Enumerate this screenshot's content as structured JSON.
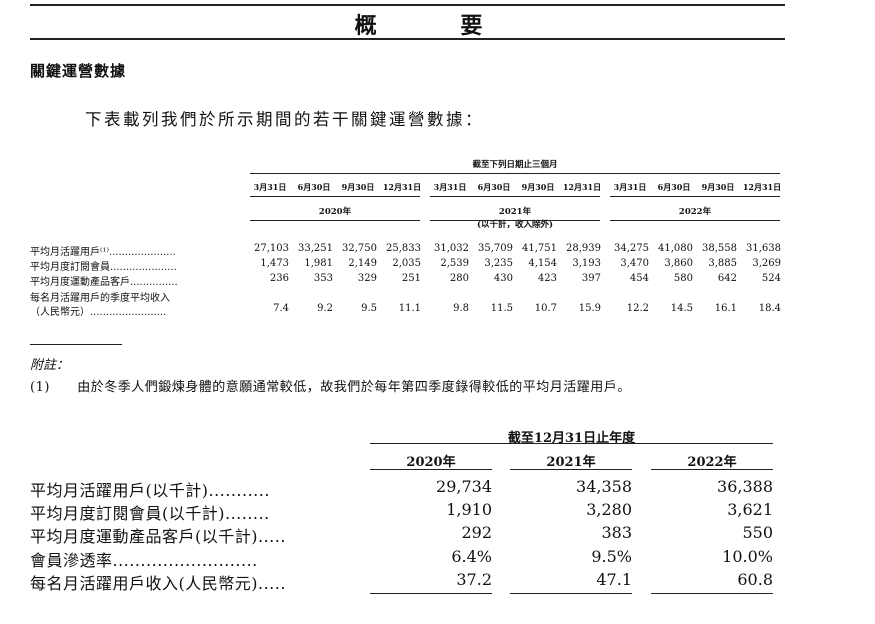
{
  "title": "概 要",
  "section_title": "關鍵運營數據",
  "intro": "下表載列我們於所示期間的若干關鍵運營數據：",
  "quarterly": {
    "super_header": "截至下列日期止三個月",
    "quarters": [
      "3月31日",
      "6月30日",
      "9月30日",
      "12月31日",
      "3月31日",
      "6月30日",
      "9月30日",
      "12月31日",
      "3月31日",
      "6月30日",
      "9月30日",
      "12月31日"
    ],
    "years": [
      "2020年",
      "2021年",
      "2022年"
    ],
    "unit_note": "(以千計，收入除外)",
    "rows": [
      {
        "label": "平均月活躍用戶⁽¹⁾.....................",
        "values": [
          "27,103",
          "33,251",
          "32,750",
          "25,833",
          "31,032",
          "35,709",
          "41,751",
          "28,939",
          "34,275",
          "41,080",
          "38,558",
          "31,638"
        ]
      },
      {
        "label": "平均月度訂閱會員.....................",
        "values": [
          "1,473",
          "1,981",
          "2,149",
          "2,035",
          "2,539",
          "3,235",
          "4,154",
          "3,193",
          "3,470",
          "3,860",
          "3,885",
          "3,269"
        ]
      },
      {
        "label": "平均月度運動產品客戶...............",
        "values": [
          "236",
          "353",
          "329",
          "251",
          "280",
          "430",
          "423",
          "397",
          "454",
          "580",
          "642",
          "524"
        ]
      },
      {
        "label": "每名月活躍用戶的季度平均收入",
        "label2": "（人民幣元）........................",
        "values": [
          "7.4",
          "9.2",
          "9.5",
          "11.1",
          "9.8",
          "11.5",
          "10.7",
          "15.9",
          "12.2",
          "14.5",
          "16.1",
          "18.4"
        ]
      }
    ]
  },
  "notes": {
    "heading": "附註：",
    "items": [
      {
        "num": "(1)",
        "text": "由於冬季人們鍛煉身體的意願通常較低，故我們於每年第四季度錄得較低的平均月活躍用戶。"
      }
    ]
  },
  "annual": {
    "super_header": "截至12月31日止年度",
    "years": [
      "2020年",
      "2021年",
      "2022年"
    ],
    "rows": [
      {
        "label": "平均月活躍用戶(以千計)...........",
        "values": [
          "29,734",
          "34,358",
          "36,388"
        ]
      },
      {
        "label": "平均月度訂閱會員(以千計)........",
        "values": [
          "1,910",
          "3,280",
          "3,621"
        ]
      },
      {
        "label": "平均月度運動產品客戶(以千計).....",
        "values": [
          "292",
          "383",
          "550"
        ]
      },
      {
        "label": "會員滲透率..........................",
        "values": [
          "6.4%",
          "9.5%",
          "10.0%"
        ]
      },
      {
        "label": "每名月活躍用戶收入(人民幣元).....",
        "values": [
          "37.2",
          "47.1",
          "60.8"
        ]
      }
    ]
  }
}
